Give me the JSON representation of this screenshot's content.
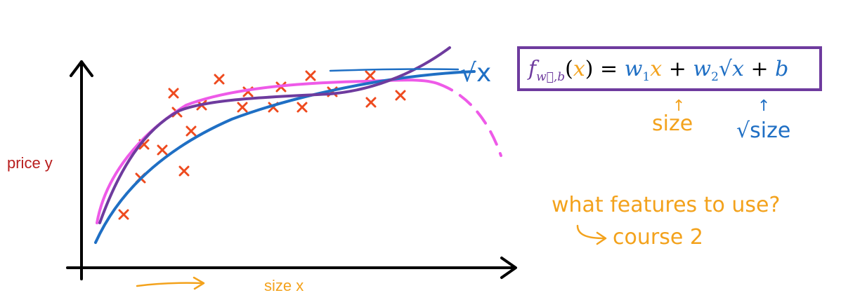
{
  "axes": {
    "y_label": "price y",
    "x_label": "size x"
  },
  "colors": {
    "marker": "#ee4a1e",
    "curve_blue": "#1f6fc4",
    "curve_purple": "#6e3b9e",
    "curve_magenta": "#ee5ae8",
    "annotation_orange": "#f3a21c",
    "label_red": "#b81d1d",
    "axis": "#000000"
  },
  "sqrt_tag": "√x",
  "formula": {
    "f": "f",
    "subscript": "w⃗,b",
    "open": "(",
    "x": "x",
    "close": ")",
    "eq": " = ",
    "w1": "w",
    "w1_sub": "1",
    "x1": "x",
    "plus1": " + ",
    "w2": "w",
    "w2_sub": "2",
    "sqrt": "√",
    "x2": "x",
    "plus2": " + ",
    "b": "b"
  },
  "arrow_up": "↑",
  "feature_labels": {
    "size": "size",
    "sqrt_size": "√size"
  },
  "note": {
    "line1": "what features to use?",
    "line2": "course 2"
  }
}
